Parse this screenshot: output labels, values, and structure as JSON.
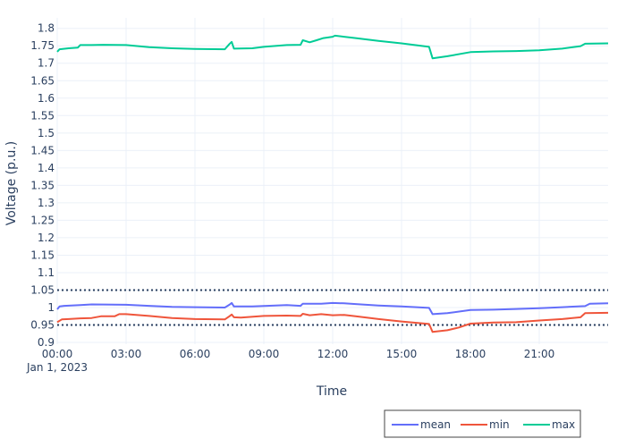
{
  "chart_data": {
    "type": "line",
    "xlabel": "Time",
    "ylabel": "Voltage (p.u.)",
    "x_ticks": [
      "00:00",
      "03:00",
      "06:00",
      "09:00",
      "12:00",
      "15:00",
      "18:00",
      "21:00"
    ],
    "x_date_label": "Jan 1, 2023",
    "x_range_hours": [
      0,
      24
    ],
    "y_ticks": [
      "0.9",
      "0.95",
      "1",
      "1.05",
      "1.1",
      "1.15",
      "1.2",
      "1.25",
      "1.3",
      "1.35",
      "1.4",
      "1.45",
      "1.5",
      "1.55",
      "1.6",
      "1.65",
      "1.7",
      "1.75",
      "1.8"
    ],
    "ylim": [
      0.895,
      1.83
    ],
    "grid": true,
    "legend_position": "bottom-right",
    "reference_lines": [
      {
        "y": 1.05,
        "color": "#2a3f5f",
        "style": "dotted"
      },
      {
        "y": 0.95,
        "color": "#2a3f5f",
        "style": "dotted"
      }
    ],
    "series": [
      {
        "name": "mean",
        "color": "#636efa",
        "points": [
          [
            0,
            0.995
          ],
          [
            0.1,
            1.003
          ],
          [
            0.3,
            1.005
          ],
          [
            1.0,
            1.007
          ],
          [
            1.5,
            1.009
          ],
          [
            3.0,
            1.008
          ],
          [
            4.0,
            1.005
          ],
          [
            5.0,
            1.002
          ],
          [
            6.0,
            1.001
          ],
          [
            7.3,
            1.0
          ],
          [
            7.5,
            1.008
          ],
          [
            7.6,
            1.013
          ],
          [
            7.7,
            1.003
          ],
          [
            8.5,
            1.003
          ],
          [
            10.0,
            1.007
          ],
          [
            10.6,
            1.005
          ],
          [
            10.7,
            1.011
          ],
          [
            11.0,
            1.011
          ],
          [
            11.5,
            1.011
          ],
          [
            12.0,
            1.013
          ],
          [
            12.5,
            1.012
          ],
          [
            13.0,
            1.01
          ],
          [
            14.0,
            1.006
          ],
          [
            15.0,
            1.003
          ],
          [
            16.2,
            0.999
          ],
          [
            16.35,
            0.981
          ],
          [
            17.0,
            0.984
          ],
          [
            18.0,
            0.993
          ],
          [
            19.0,
            0.994
          ],
          [
            20.0,
            0.996
          ],
          [
            21.0,
            0.998
          ],
          [
            22.0,
            1.001
          ],
          [
            23.0,
            1.004
          ],
          [
            23.2,
            1.011
          ],
          [
            24.0,
            1.012
          ]
        ]
      },
      {
        "name": "min",
        "color": "#ef553b",
        "points": [
          [
            0,
            0.958
          ],
          [
            0.2,
            0.966
          ],
          [
            0.5,
            0.967
          ],
          [
            1.0,
            0.969
          ],
          [
            1.5,
            0.97
          ],
          [
            1.9,
            0.975
          ],
          [
            2.5,
            0.975
          ],
          [
            2.7,
            0.981
          ],
          [
            3.0,
            0.981
          ],
          [
            4.0,
            0.976
          ],
          [
            5.0,
            0.97
          ],
          [
            6.0,
            0.967
          ],
          [
            7.3,
            0.966
          ],
          [
            7.5,
            0.975
          ],
          [
            7.6,
            0.98
          ],
          [
            7.7,
            0.972
          ],
          [
            8.0,
            0.971
          ],
          [
            9.0,
            0.976
          ],
          [
            10.0,
            0.977
          ],
          [
            10.6,
            0.976
          ],
          [
            10.7,
            0.982
          ],
          [
            11.0,
            0.978
          ],
          [
            11.5,
            0.981
          ],
          [
            12.0,
            0.978
          ],
          [
            12.5,
            0.979
          ],
          [
            13.0,
            0.975
          ],
          [
            14.0,
            0.967
          ],
          [
            15.0,
            0.96
          ],
          [
            16.2,
            0.953
          ],
          [
            16.35,
            0.93
          ],
          [
            17.0,
            0.935
          ],
          [
            17.5,
            0.943
          ],
          [
            18.0,
            0.954
          ],
          [
            19.0,
            0.957
          ],
          [
            20.0,
            0.958
          ],
          [
            21.0,
            0.963
          ],
          [
            22.0,
            0.967
          ],
          [
            22.8,
            0.972
          ],
          [
            23.0,
            0.984
          ],
          [
            24.0,
            0.985
          ]
        ]
      },
      {
        "name": "max",
        "color": "#00cc96",
        "points": [
          [
            0,
            1.733
          ],
          [
            0.1,
            1.74
          ],
          [
            0.5,
            1.743
          ],
          [
            0.9,
            1.745
          ],
          [
            1.0,
            1.752
          ],
          [
            1.5,
            1.752
          ],
          [
            2.0,
            1.753
          ],
          [
            3.0,
            1.752
          ],
          [
            4.0,
            1.746
          ],
          [
            5.0,
            1.743
          ],
          [
            6.0,
            1.741
          ],
          [
            7.3,
            1.74
          ],
          [
            7.5,
            1.755
          ],
          [
            7.6,
            1.761
          ],
          [
            7.7,
            1.742
          ],
          [
            8.5,
            1.743
          ],
          [
            9.0,
            1.747
          ],
          [
            10.0,
            1.752
          ],
          [
            10.6,
            1.753
          ],
          [
            10.7,
            1.766
          ],
          [
            11.0,
            1.76
          ],
          [
            11.3,
            1.766
          ],
          [
            11.6,
            1.772
          ],
          [
            12.0,
            1.776
          ],
          [
            12.1,
            1.779
          ],
          [
            12.5,
            1.776
          ],
          [
            13.0,
            1.772
          ],
          [
            14.0,
            1.764
          ],
          [
            15.0,
            1.757
          ],
          [
            16.2,
            1.747
          ],
          [
            16.35,
            1.714
          ],
          [
            17.0,
            1.72
          ],
          [
            18.0,
            1.732
          ],
          [
            19.0,
            1.734
          ],
          [
            20.0,
            1.735
          ],
          [
            21.0,
            1.737
          ],
          [
            22.0,
            1.742
          ],
          [
            22.8,
            1.749
          ],
          [
            23.0,
            1.756
          ],
          [
            24.0,
            1.757
          ]
        ]
      }
    ]
  }
}
